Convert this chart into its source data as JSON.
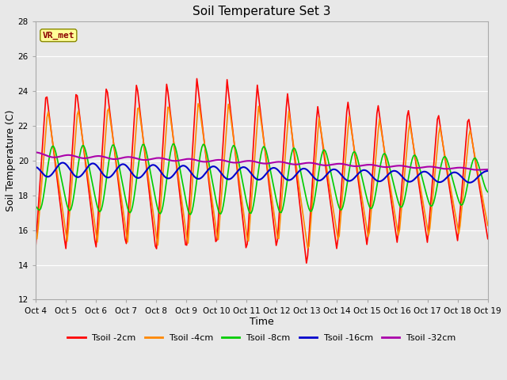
{
  "title": "Soil Temperature Set 3",
  "xlabel": "Time",
  "ylabel": "Soil Temperature (C)",
  "ylim": [
    12,
    28
  ],
  "yticks": [
    12,
    14,
    16,
    18,
    20,
    22,
    24,
    26,
    28
  ],
  "xtick_labels": [
    "Oct 4",
    "Oct 5",
    "Oct 6",
    "Oct 7",
    "Oct 8",
    "Oct 9",
    "Oct 10",
    "Oct 11",
    "Oct 12",
    "Oct 13",
    "Oct 14",
    "Oct 15",
    "Oct 16",
    "Oct 17",
    "Oct 18",
    "Oct 19"
  ],
  "background_color": "#e8e8e8",
  "annotation_text": "VR_met",
  "annotation_bg": "#ffff99",
  "annotation_border": "#888800",
  "annotation_text_color": "#8B0000",
  "series": [
    {
      "label": "Tsoil -2cm",
      "color": "#ff0000",
      "linewidth": 1.2
    },
    {
      "label": "Tsoil -4cm",
      "color": "#ff8800",
      "linewidth": 1.2
    },
    {
      "label": "Tsoil -8cm",
      "color": "#00cc00",
      "linewidth": 1.2
    },
    {
      "label": "Tsoil -16cm",
      "color": "#0000cc",
      "linewidth": 1.5
    },
    {
      "label": "Tsoil -32cm",
      "color": "#aa00aa",
      "linewidth": 1.5
    }
  ]
}
